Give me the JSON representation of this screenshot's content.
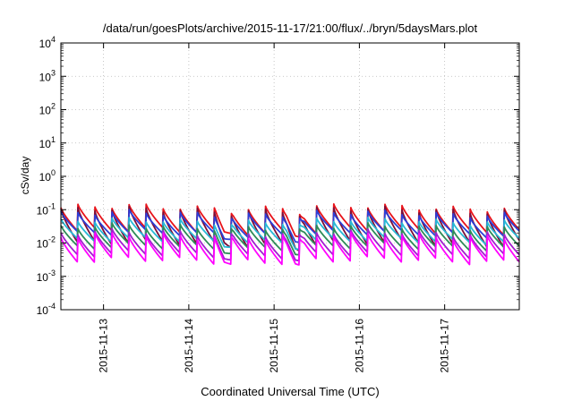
{
  "chart_data": {
    "type": "line",
    "title": "/data/run/goesPlots/archive/2015-11-17/21:00/flux/../bryn/5daysMars.plot",
    "xlabel": "Coordinated Universal Time (UTC)",
    "ylabel": "cSv/day",
    "yscale": "log",
    "ylim": [
      0.0001,
      10000
    ],
    "y_ticks": [
      {
        "base": "10",
        "exp": "-4"
      },
      {
        "base": "10",
        "exp": "-3"
      },
      {
        "base": "10",
        "exp": "-2"
      },
      {
        "base": "10",
        "exp": "-1"
      },
      {
        "base": "10",
        "exp": "0"
      },
      {
        "base": "10",
        "exp": "1"
      },
      {
        "base": "10",
        "exp": "2"
      },
      {
        "base": "10",
        "exp": "3"
      },
      {
        "base": "10",
        "exp": "4"
      }
    ],
    "xlim": [
      "2015-11-12T12:00",
      "2015-11-17T21:00"
    ],
    "x_ticks": [
      "2015-11-13",
      "2015-11-14",
      "2015-11-15",
      "2015-11-16",
      "2015-11-17"
    ],
    "grid": true,
    "legend": "none",
    "pattern": {
      "description": "sawtooth, about 5 peaks per day",
      "peaks_per_day": 5,
      "dips": [
        "2015-11-14T10:00",
        "2015-11-15T06:00"
      ]
    },
    "series": [
      {
        "color": "#e8131a",
        "peak": 0.115,
        "trough": 0.022
      },
      {
        "color": "#7a0f3a",
        "peak": 0.095,
        "trough": 0.009
      },
      {
        "color": "#2c3ed8",
        "peak": 0.075,
        "trough": 0.018
      },
      {
        "color": "#27b9d6",
        "peak": 0.045,
        "trough": 0.011
      },
      {
        "color": "#2e8b57",
        "peak": 0.03,
        "trough": 0.007
      },
      {
        "color": "#a21fd0",
        "peak": 0.02,
        "trough": 0.0042
      },
      {
        "color": "#ff00ff",
        "peak": 0.016,
        "trough": 0.0028
      }
    ]
  }
}
